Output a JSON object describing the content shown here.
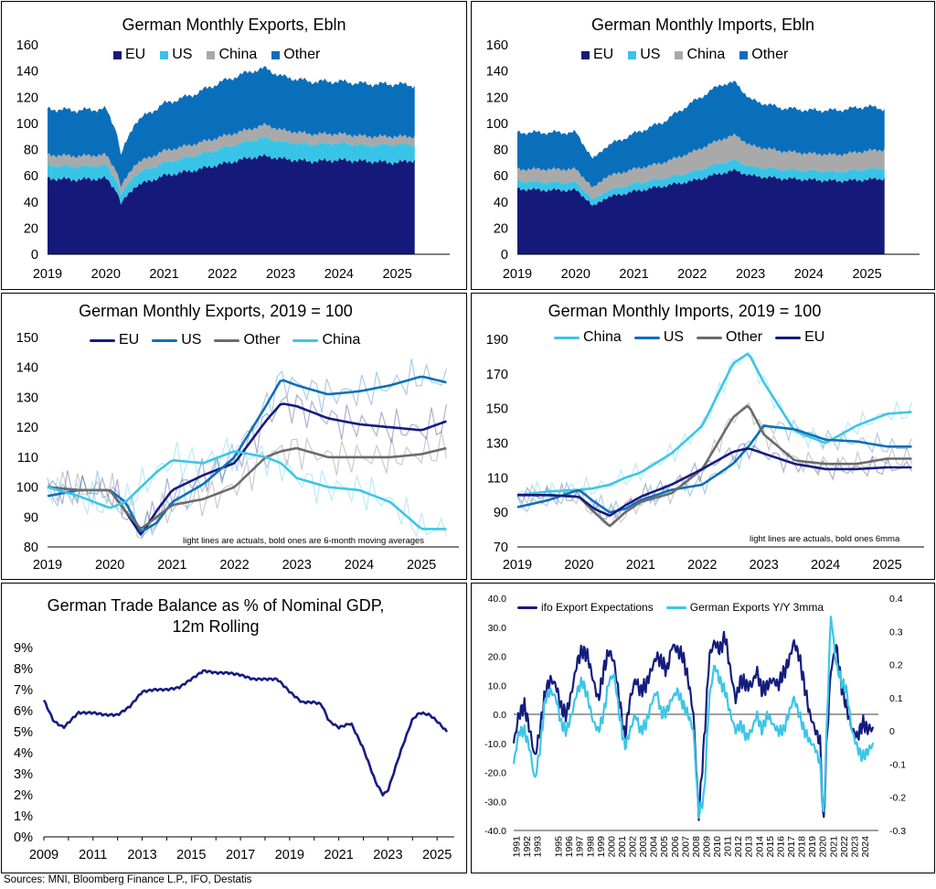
{
  "source": "Sources: MNI,  Bloomberg Finance L.P., IFO, Destatis",
  "colors": {
    "eu": "#151a7a",
    "us": "#38c4e6",
    "china": "#a9a9a9",
    "other": "#0a6fbb",
    "line_eu": "#141c7e",
    "line_us": "#0d6fb8",
    "line_other": "#6b6b6b",
    "line_china": "#3cc6e7",
    "ifo": "#141c7e",
    "exp": "#3cc6e7",
    "tb": "#161b82"
  },
  "chart_data": [
    {
      "id": "exports_ebln",
      "type": "area",
      "title": "German Monthly Exports, Ebln",
      "legend": [
        "EU",
        "US",
        "China",
        "Other"
      ],
      "xlabels": [
        "2019",
        "2020",
        "2021",
        "2022",
        "2023",
        "2024",
        "2025"
      ],
      "ylim": [
        0,
        160
      ],
      "yticks": [
        0,
        20,
        40,
        60,
        80,
        100,
        120,
        140,
        160
      ],
      "x": [
        2019.0,
        2019.5,
        2020.0,
        2020.2,
        2020.25,
        2020.5,
        2021.0,
        2021.5,
        2022.0,
        2022.5,
        2022.75,
        2023.0,
        2023.5,
        2024.0,
        2024.5,
        2025.0,
        2025.3
      ],
      "series": [
        {
          "name": "EU",
          "values": [
            58,
            57,
            58,
            48,
            38,
            52,
            60,
            64,
            69,
            74,
            75,
            73,
            71,
            72,
            71,
            70,
            72
          ]
        },
        {
          "name": "US",
          "values": [
            10,
            10,
            10,
            8,
            7,
            9,
            10,
            11,
            12,
            13,
            14,
            13,
            13,
            13,
            12,
            14,
            12
          ]
        },
        {
          "name": "China",
          "values": [
            8,
            8,
            8,
            7,
            6,
            8,
            9,
            9,
            9,
            9,
            10,
            9,
            8,
            7,
            7,
            6,
            6
          ]
        },
        {
          "name": "Other",
          "values": [
            35,
            35,
            35,
            30,
            24,
            32,
            36,
            38,
            42,
            44,
            43,
            41,
            40,
            40,
            40,
            40,
            39
          ]
        }
      ]
    },
    {
      "id": "imports_ebln",
      "type": "area",
      "title": "German Monthly Imports, Ebln",
      "legend": [
        "EU",
        "US",
        "China",
        "Other"
      ],
      "xlabels": [
        "2019",
        "2020",
        "2021",
        "2022",
        "2023",
        "2024",
        "2025"
      ],
      "ylim": [
        0,
        160
      ],
      "yticks": [
        0,
        20,
        40,
        60,
        80,
        100,
        120,
        140,
        160
      ],
      "x": [
        2019.0,
        2019.5,
        2020.0,
        2020.2,
        2020.3,
        2020.5,
        2021.0,
        2021.5,
        2022.0,
        2022.5,
        2022.75,
        2023.0,
        2023.5,
        2024.0,
        2024.5,
        2025.0,
        2025.3
      ],
      "series": [
        {
          "name": "EU",
          "values": [
            50,
            49,
            49,
            42,
            36,
            43,
            48,
            52,
            56,
            62,
            64,
            60,
            58,
            57,
            56,
            57,
            58
          ]
        },
        {
          "name": "US",
          "values": [
            6,
            6,
            6,
            5,
            5,
            5,
            6,
            6,
            7,
            8,
            8,
            7,
            7,
            7,
            7,
            8,
            8
          ]
        },
        {
          "name": "China",
          "values": [
            9,
            10,
            10,
            9,
            9,
            11,
            11,
            12,
            15,
            18,
            19,
            16,
            14,
            13,
            13,
            14,
            14
          ]
        },
        {
          "name": "Other",
          "values": [
            28,
            28,
            28,
            24,
            22,
            23,
            27,
            31,
            38,
            42,
            40,
            35,
            33,
            33,
            34,
            34,
            31
          ]
        }
      ]
    },
    {
      "id": "exports_index",
      "type": "line",
      "title": "German Monthly Exports, 2019 = 100",
      "legend": [
        "EU",
        "US",
        "Other",
        "China"
      ],
      "note": "light lines are actuals, bold ones are 6-month moving averages",
      "xlabels": [
        "2019",
        "2020",
        "2021",
        "2022",
        "2023",
        "2024",
        "2025"
      ],
      "ylim": [
        80,
        150
      ],
      "yticks": [
        80,
        90,
        100,
        110,
        120,
        130,
        140,
        150
      ],
      "x": [
        2019.0,
        2019.5,
        2020.0,
        2020.25,
        2020.5,
        2020.75,
        2021.0,
        2021.5,
        2022.0,
        2022.5,
        2022.75,
        2023.0,
        2023.5,
        2024.0,
        2024.5,
        2025.0,
        2025.4
      ],
      "series": [
        {
          "name": "EU",
          "values": [
            100,
            99,
            99,
            92,
            84,
            92,
            99,
            104,
            108,
            122,
            128,
            127,
            123,
            121,
            120,
            119,
            122
          ]
        },
        {
          "name": "US",
          "values": [
            97,
            99,
            99,
            95,
            85,
            88,
            95,
            101,
            110,
            127,
            136,
            134,
            131,
            132,
            134,
            137,
            135
          ]
        },
        {
          "name": "Other",
          "values": [
            100,
            99,
            99,
            92,
            86,
            90,
            94,
            96,
            100,
            110,
            112,
            113,
            110,
            110,
            110,
            111,
            113
          ]
        },
        {
          "name": "China",
          "values": [
            100,
            97,
            93,
            95,
            100,
            105,
            109,
            108,
            112,
            110,
            108,
            103,
            100,
            99,
            95,
            86,
            86
          ]
        }
      ]
    },
    {
      "id": "imports_index",
      "type": "line",
      "title": "German Monthly Imports, 2019 = 100",
      "legend": [
        "China",
        "US",
        "Other",
        "EU"
      ],
      "note": "light lines are actuals, bold ones 6mma",
      "xlabels": [
        "2019",
        "2020",
        "2021",
        "2022",
        "2023",
        "2024",
        "2025"
      ],
      "ylim": [
        70,
        190
      ],
      "yticks": [
        70,
        90,
        110,
        130,
        150,
        170,
        190
      ],
      "x": [
        2019.0,
        2019.5,
        2020.0,
        2020.25,
        2020.5,
        2020.75,
        2021.0,
        2021.5,
        2022.0,
        2022.5,
        2022.75,
        2023.0,
        2023.5,
        2024.0,
        2024.5,
        2025.0,
        2025.4
      ],
      "series": [
        {
          "name": "China",
          "values": [
            100,
            102,
            103,
            104,
            106,
            110,
            113,
            124,
            140,
            176,
            182,
            165,
            137,
            130,
            140,
            147,
            148
          ]
        },
        {
          "name": "US",
          "values": [
            93,
            97,
            103,
            96,
            90,
            92,
            97,
            103,
            106,
            118,
            128,
            140,
            138,
            132,
            131,
            128,
            128
          ]
        },
        {
          "name": "Other",
          "values": [
            100,
            100,
            99,
            90,
            82,
            90,
            96,
            101,
            115,
            145,
            152,
            135,
            120,
            118,
            118,
            121,
            121
          ]
        },
        {
          "name": "EU",
          "values": [
            100,
            100,
            99,
            92,
            88,
            94,
            99,
            106,
            115,
            125,
            127,
            124,
            118,
            115,
            115,
            116,
            116
          ]
        }
      ]
    },
    {
      "id": "trade_balance",
      "type": "line",
      "title_lines": [
        "German Trade Balance as % of Nominal GDP,",
        "12m Rolling"
      ],
      "xlabels": [
        "2009",
        "2011",
        "2013",
        "2015",
        "2017",
        "2019",
        "2021",
        "2023",
        "2025"
      ],
      "ylim": [
        0,
        9
      ],
      "yticks": [
        "0%",
        "1%",
        "2%",
        "3%",
        "4%",
        "5%",
        "6%",
        "7%",
        "8%",
        "9%"
      ],
      "x": [
        2009.0,
        2009.4,
        2009.8,
        2010.4,
        2011.0,
        2011.5,
        2012.0,
        2012.5,
        2013.0,
        2013.5,
        2014.0,
        2014.5,
        2015.0,
        2015.5,
        2016.0,
        2016.5,
        2017.0,
        2017.5,
        2018.0,
        2018.5,
        2019.0,
        2019.5,
        2020.0,
        2020.3,
        2020.6,
        2021.0,
        2021.5,
        2022.0,
        2022.5,
        2022.8,
        2023.0,
        2023.5,
        2024.0,
        2024.3,
        2024.7,
        2025.0,
        2025.4
      ],
      "series": [
        {
          "name": "Trade balance",
          "values": [
            6.5,
            5.5,
            5.2,
            5.9,
            5.9,
            5.8,
            5.8,
            6.2,
            6.9,
            7.0,
            7.0,
            7.1,
            7.5,
            7.9,
            7.8,
            7.8,
            7.7,
            7.5,
            7.5,
            7.5,
            6.9,
            6.4,
            6.4,
            6.3,
            5.5,
            5.2,
            5.4,
            4.2,
            2.6,
            2.0,
            2.2,
            4.0,
            5.6,
            5.9,
            5.8,
            5.5,
            5.0
          ]
        }
      ]
    },
    {
      "id": "ifo_vs_exports",
      "type": "line",
      "legend": [
        "ifo Export Expectations",
        "German Exports Y/Y 3mma"
      ],
      "xlabels": [
        "1991",
        "1992",
        "1993",
        "1995",
        "1996",
        "1997",
        "1998",
        "1999",
        "2000",
        "2001",
        "2002",
        "2003",
        "2004",
        "2005",
        "2006",
        "2007",
        "2008",
        "2009",
        "2010",
        "2011",
        "2012",
        "2013",
        "2014",
        "2015",
        "2016",
        "2017",
        "2018",
        "2019",
        "2020",
        "2021",
        "2022",
        "2023",
        "2024"
      ],
      "ylim_left": [
        -40,
        40
      ],
      "yticks_left": [
        "-40.0",
        "-30.0",
        "-20.0",
        "-10.0",
        "0.0",
        "10.0",
        "20.0",
        "30.0",
        "40.0"
      ],
      "ylim_right": [
        -0.3,
        0.4
      ],
      "yticks_right": [
        "-0.3",
        "-0.2",
        "-0.1",
        "0",
        "0.1",
        "0.2",
        "0.3",
        "0.4"
      ],
      "x": [
        1991,
        1991.5,
        1992,
        1992.5,
        1993,
        1993.5,
        1994,
        1994.5,
        1995,
        1995.5,
        1996,
        1996.5,
        1997,
        1997.5,
        1998,
        1998.5,
        1999,
        1999.5,
        2000,
        2000.5,
        2001,
        2001.5,
        2002,
        2002.5,
        2003,
        2003.5,
        2004,
        2004.5,
        2005,
        2005.5,
        2006,
        2006.5,
        2007,
        2007.5,
        2008,
        2008.5,
        2009,
        2009.5,
        2010,
        2010.5,
        2011,
        2011.5,
        2012,
        2012.5,
        2013,
        2013.5,
        2014,
        2014.5,
        2015,
        2015.5,
        2016,
        2016.5,
        2017,
        2017.5,
        2018,
        2018.5,
        2019,
        2019.5,
        2020,
        2020.3,
        2020.6,
        2021,
        2021.5,
        2022,
        2022.5,
        2023,
        2023.5,
        2024,
        2024.5,
        2025
      ],
      "series": [
        {
          "name": "ifo Export Expectations",
          "axis": "left",
          "values": [
            -10,
            0,
            3,
            -5,
            -15,
            -5,
            8,
            12,
            10,
            2,
            0,
            8,
            18,
            22,
            20,
            12,
            5,
            15,
            22,
            18,
            5,
            -8,
            5,
            12,
            8,
            10,
            15,
            20,
            18,
            15,
            24,
            22,
            20,
            12,
            0,
            -35,
            -10,
            20,
            25,
            22,
            27,
            15,
            5,
            12,
            10,
            10,
            15,
            8,
            10,
            12,
            10,
            14,
            18,
            25,
            20,
            10,
            0,
            -5,
            -10,
            -40,
            -10,
            15,
            24,
            10,
            2,
            -5,
            -8,
            -3,
            -5,
            -5
          ]
        },
        {
          "name": "German Exports Y/Y 3mma",
          "axis": "right",
          "values": [
            -0.1,
            0.0,
            0.0,
            -0.05,
            -0.15,
            -0.05,
            0.1,
            0.12,
            0.1,
            0.02,
            0.0,
            0.05,
            0.12,
            0.15,
            0.1,
            0.03,
            0.0,
            0.05,
            0.15,
            0.17,
            0.05,
            -0.05,
            0.0,
            0.05,
            0.0,
            0.02,
            0.08,
            0.12,
            0.05,
            0.06,
            0.1,
            0.12,
            0.08,
            0.05,
            0.0,
            -0.25,
            -0.2,
            0.1,
            0.2,
            0.15,
            0.12,
            0.05,
            0.0,
            0.02,
            -0.02,
            0.0,
            0.05,
            0.0,
            0.05,
            0.02,
            0.0,
            0.0,
            0.05,
            0.1,
            0.05,
            0.0,
            -0.03,
            -0.05,
            -0.1,
            -0.28,
            0.0,
            0.35,
            0.2,
            0.15,
            0.12,
            0.0,
            -0.05,
            -0.08,
            -0.06,
            -0.04
          ]
        }
      ]
    }
  ]
}
